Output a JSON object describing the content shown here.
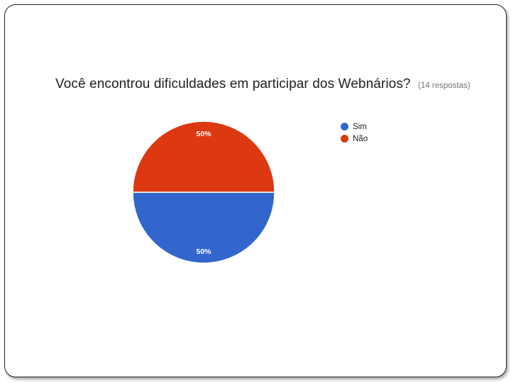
{
  "chart_data": {
    "type": "pie",
    "title": "Você encontrou dificuldades em participar dos Webnários?",
    "subtitle": "(14 respostas)",
    "categories": [
      "Sim",
      "Não"
    ],
    "values": [
      50,
      50
    ],
    "data_labels": [
      "50%",
      "50%"
    ],
    "colors": [
      "#3366cc",
      "#dc3912"
    ],
    "legend_position": "right"
  }
}
